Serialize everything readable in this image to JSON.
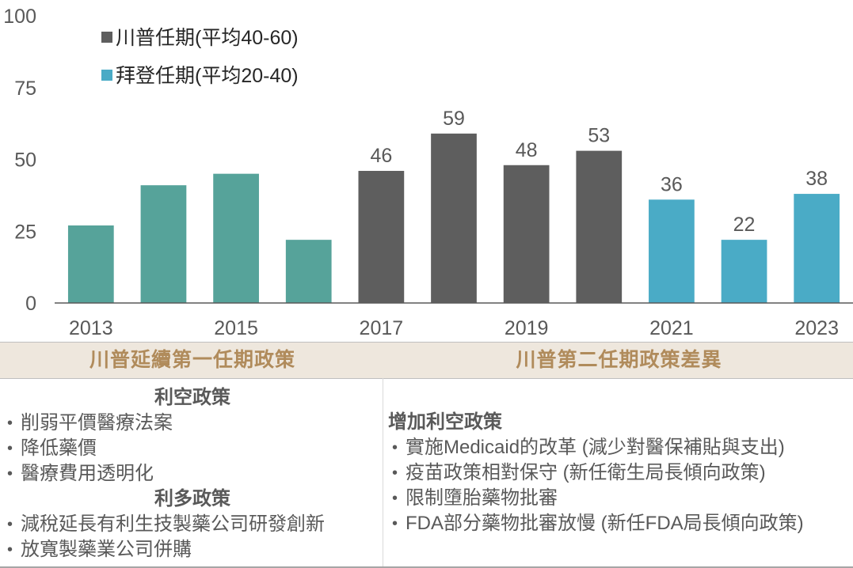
{
  "chart_data": {
    "type": "bar",
    "title": "",
    "xlabel": "",
    "ylabel": "",
    "ylim": [
      0,
      100
    ],
    "yticks": [
      0,
      25,
      50,
      75,
      100
    ],
    "categories": [
      "2013",
      "2014",
      "2015",
      "2016",
      "2017",
      "2018",
      "2019",
      "2020",
      "2021",
      "2022",
      "2023"
    ],
    "xtick_labels": [
      "2013",
      "",
      "2015",
      "",
      "2017",
      "",
      "2019",
      "",
      "2021",
      "",
      "2023"
    ],
    "values": [
      27,
      41,
      45,
      22,
      46,
      59,
      48,
      53,
      36,
      22,
      38
    ],
    "data_labels": [
      "",
      "",
      "",
      "",
      "46",
      "59",
      "48",
      "53",
      "36",
      "22",
      "38"
    ],
    "bar_groups": [
      "pre",
      "pre",
      "pre",
      "pre",
      "trump",
      "trump",
      "trump",
      "trump",
      "biden",
      "biden",
      "biden"
    ],
    "colors": {
      "pre": "#56A39A",
      "trump": "#5E5E5E",
      "biden": "#4AABC6"
    },
    "grid": false,
    "legend_position": "top-left",
    "legend": [
      {
        "name": "川普任期(平均40-60)",
        "color": "#5E5E5E"
      },
      {
        "name": "拜登任期(平均20-40)",
        "color": "#4AABC6"
      }
    ]
  },
  "band": {
    "left_title": "川普延續第一任期政策",
    "right_title": "川普第二任期政策差異"
  },
  "left_panel": {
    "bearish_heading": "利空政策",
    "bearish_items": [
      "削弱平價醫療法案",
      "降低藥價",
      "醫療費用透明化"
    ],
    "bullish_heading": "利多政策",
    "bullish_items": [
      "減稅延長有利生技製藥公司研發創新",
      "放寬製藥業公司併購"
    ]
  },
  "right_panel": {
    "heading": "增加利空政策",
    "items": [
      "實施Medicaid的改革 (減少對醫保補貼與支出)",
      "疫苗政策相對保守 (新任衛生局長傾向政策)",
      "限制墮胎藥物批審",
      "FDA部分藥物批審放慢 (新任FDA局長傾向政策)"
    ]
  }
}
